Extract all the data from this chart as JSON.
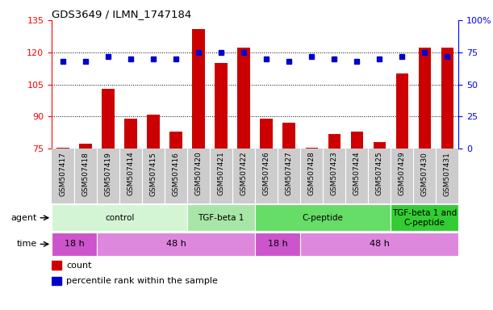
{
  "title": "GDS3649 / ILMN_1747184",
  "samples": [
    "GSM507417",
    "GSM507418",
    "GSM507419",
    "GSM507414",
    "GSM507415",
    "GSM507416",
    "GSM507420",
    "GSM507421",
    "GSM507422",
    "GSM507426",
    "GSM507427",
    "GSM507428",
    "GSM507423",
    "GSM507424",
    "GSM507425",
    "GSM507429",
    "GSM507430",
    "GSM507431"
  ],
  "counts": [
    75.5,
    77.5,
    103,
    89,
    91,
    83,
    131,
    115,
    122,
    89,
    87,
    75.5,
    82,
    83,
    78,
    110,
    122,
    122
  ],
  "percentiles": [
    68,
    68,
    72,
    70,
    70,
    70,
    75,
    75,
    75,
    70,
    68,
    72,
    70,
    68,
    70,
    72,
    75,
    72
  ],
  "ylim_left": [
    75,
    135
  ],
  "ylim_right": [
    0,
    100
  ],
  "yticks_left": [
    75,
    90,
    105,
    120,
    135
  ],
  "yticks_right": [
    0,
    25,
    50,
    75,
    100
  ],
  "bar_color": "#cc0000",
  "dot_color": "#0000cc",
  "agent_group_colors": [
    "#d4f5d4",
    "#a8e6a8",
    "#66dd66",
    "#33cc33"
  ],
  "agent_groups": [
    {
      "label": "control",
      "start": 0,
      "end": 6
    },
    {
      "label": "TGF-beta 1",
      "start": 6,
      "end": 9
    },
    {
      "label": "C-peptide",
      "start": 9,
      "end": 15
    },
    {
      "label": "TGF-beta 1 and\nC-peptide",
      "start": 15,
      "end": 18
    }
  ],
  "time_group_colors": {
    "18 h": "#cc55cc",
    "48 h": "#dd88dd"
  },
  "time_groups": [
    {
      "label": "18 h",
      "start": 0,
      "end": 2
    },
    {
      "label": "48 h",
      "start": 2,
      "end": 9
    },
    {
      "label": "18 h",
      "start": 9,
      "end": 11
    },
    {
      "label": "48 h",
      "start": 11,
      "end": 18
    }
  ],
  "xticklabel_bg": "#cccccc",
  "plot_bg": "#ffffff"
}
